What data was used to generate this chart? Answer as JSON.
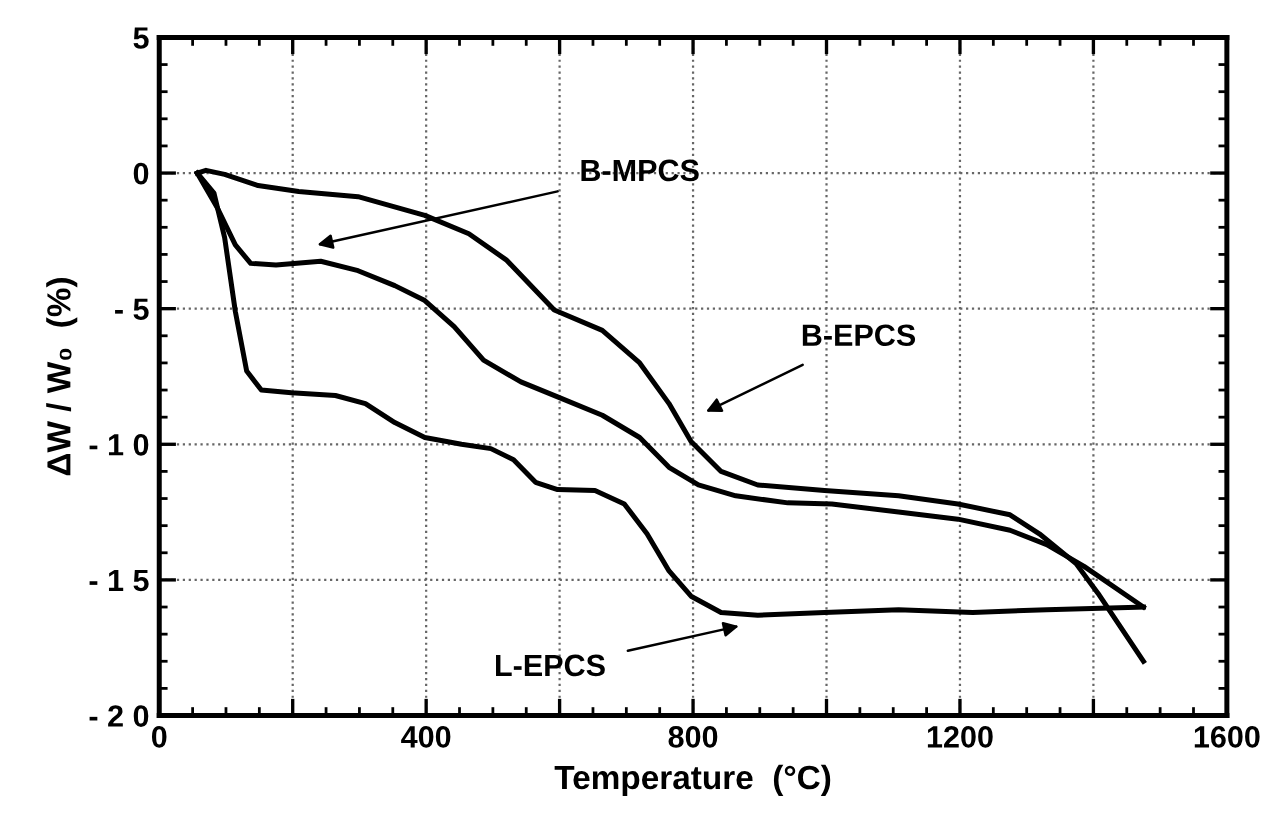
{
  "chart_data": {
    "type": "line",
    "xlabel": "Temperature  (°C)",
    "ylabel": "ΔW / W₀  (%)",
    "xlim": [
      0,
      1600
    ],
    "ylim": [
      -20,
      5
    ],
    "xticks": [
      0,
      {
        "value": 200,
        "label": null
      },
      400,
      {
        "value": 600,
        "label": null
      },
      800,
      {
        "value": 1000,
        "label": null
      },
      1200,
      {
        "value": 1400,
        "label": null
      },
      1600
    ],
    "yticks": [
      {
        "value": -20,
        "label": "- 2 0"
      },
      {
        "value": -15,
        "label": "- 1 5"
      },
      {
        "value": -10,
        "label": "- 1 0"
      },
      {
        "value": -5,
        "label": "- 5"
      },
      0,
      5
    ],
    "grid": true,
    "marker": "none",
    "line_style": "solid",
    "series": [
      {
        "color": "#000000",
        "x": [
          57,
          70,
          98,
          148,
          209,
          298,
          398,
          464,
          520,
          592,
          664,
          720,
          764,
          797,
          842,
          897,
          997,
          1108,
          1197,
          1275,
          1319,
          1374,
          1407,
          1475
        ],
        "values": [
          0,
          0.1,
          -0.05,
          -0.46,
          -0.68,
          -0.87,
          -1.56,
          -2.24,
          -3.2,
          -5.05,
          -5.8,
          -7.0,
          -8.5,
          -9.9,
          -11.0,
          -11.5,
          -11.7,
          -11.9,
          -12.2,
          -12.6,
          -13.3,
          -14.4,
          -15.5,
          -18.0
        ]
      },
      {
        "color": "#000000",
        "x": [
          57,
          87,
          114,
          137,
          175,
          242,
          298,
          353,
          398,
          442,
          486,
          542,
          597,
          664,
          720,
          764,
          808,
          864,
          942,
          1008,
          1108,
          1197,
          1275,
          1330,
          1386,
          1475
        ],
        "values": [
          0,
          -1.28,
          -2.65,
          -3.33,
          -3.39,
          -3.25,
          -3.6,
          -4.15,
          -4.7,
          -5.66,
          -6.9,
          -7.7,
          -8.25,
          -8.93,
          -9.75,
          -10.85,
          -11.5,
          -11.9,
          -12.16,
          -12.2,
          -12.5,
          -12.76,
          -13.17,
          -13.7,
          -14.5,
          -16.0
        ]
      },
      {
        "color": "#000000",
        "x": [
          57,
          82,
          98,
          114,
          131,
          153,
          198,
          264,
          309,
          353,
          398,
          453,
          497,
          531,
          564,
          597,
          653,
          697,
          731,
          764,
          797,
          842,
          897,
          997,
          1108,
          1219,
          1330,
          1475
        ],
        "values": [
          0,
          -0.74,
          -2.38,
          -5.1,
          -7.3,
          -8.0,
          -8.1,
          -8.2,
          -8.5,
          -9.2,
          -9.75,
          -10.0,
          -10.16,
          -10.57,
          -11.4,
          -11.67,
          -11.7,
          -12.2,
          -13.3,
          -14.67,
          -15.6,
          -16.2,
          -16.3,
          -16.2,
          -16.1,
          -16.2,
          -16.1,
          -16.0
        ]
      }
    ],
    "annotations": [
      "B-MPCS",
      "B-EPCS",
      "L-EPCS"
    ]
  }
}
